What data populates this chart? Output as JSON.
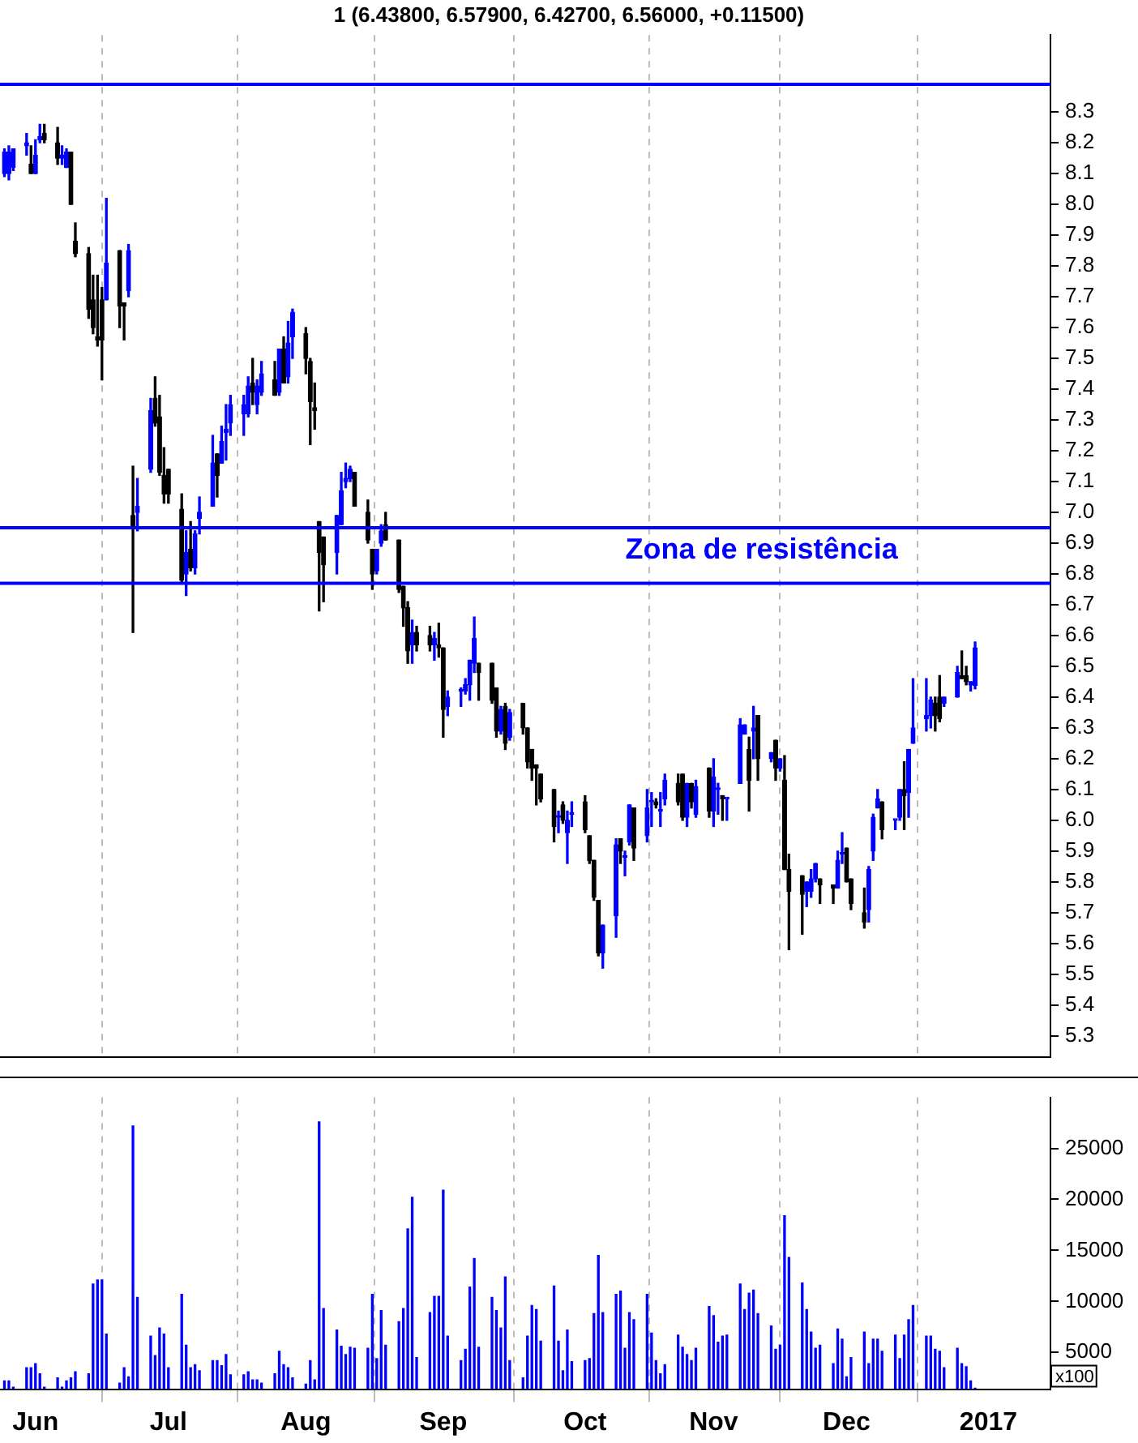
{
  "chart_data": [
    {
      "type": "candlestick",
      "title": "1 (6.43800, 6.57900, 6.42700, 6.56000, +0.11500)",
      "x": [
        "2016-05-25",
        "2016-05-26",
        "2016-05-27",
        "2016-05-30",
        "2016-05-31",
        "2016-06-01",
        "2016-06-02",
        "2016-06-03",
        "2016-06-06",
        "2016-06-07",
        "2016-06-08",
        "2016-06-09",
        "2016-06-10",
        "2016-06-13",
        "2016-06-14",
        "2016-06-15",
        "2016-06-16",
        "2016-06-17",
        "2016-06-20",
        "2016-06-21",
        "2016-06-22",
        "2016-06-23",
        "2016-06-24",
        "2016-06-27",
        "2016-06-28",
        "2016-06-29",
        "2016-06-30",
        "2016-07-01",
        "2016-07-04",
        "2016-07-05",
        "2016-07-06",
        "2016-07-07",
        "2016-07-08",
        "2016-07-11",
        "2016-07-12",
        "2016-07-13",
        "2016-07-14",
        "2016-07-15",
        "2016-07-18",
        "2016-07-19",
        "2016-07-20",
        "2016-07-21",
        "2016-07-22",
        "2016-07-25",
        "2016-07-26",
        "2016-07-27",
        "2016-07-28",
        "2016-07-29",
        "2016-08-01",
        "2016-08-02",
        "2016-08-03",
        "2016-08-04",
        "2016-08-05",
        "2016-08-08",
        "2016-08-09",
        "2016-08-10",
        "2016-08-11",
        "2016-08-12",
        "2016-08-15",
        "2016-08-16",
        "2016-08-17",
        "2016-08-18",
        "2016-08-19",
        "2016-08-22",
        "2016-08-23",
        "2016-08-24",
        "2016-08-25",
        "2016-08-26",
        "2016-08-29",
        "2016-08-30",
        "2016-08-31",
        "2016-09-01",
        "2016-09-02",
        "2016-09-05",
        "2016-09-06",
        "2016-09-07",
        "2016-09-08",
        "2016-09-09",
        "2016-09-12",
        "2016-09-13",
        "2016-09-14",
        "2016-09-15",
        "2016-09-16",
        "2016-09-19",
        "2016-09-20",
        "2016-09-21",
        "2016-09-22",
        "2016-09-23",
        "2016-09-26",
        "2016-09-27",
        "2016-09-28",
        "2016-09-29",
        "2016-09-30",
        "2016-10-03",
        "2016-10-04",
        "2016-10-05",
        "2016-10-06",
        "2016-10-07",
        "2016-10-10",
        "2016-10-11",
        "2016-10-12",
        "2016-10-13",
        "2016-10-14",
        "2016-10-17",
        "2016-10-18",
        "2016-10-19",
        "2016-10-20",
        "2016-10-21",
        "2016-10-24",
        "2016-10-25",
        "2016-10-26",
        "2016-10-27",
        "2016-10-28",
        "2016-10-31",
        "2016-11-01",
        "2016-11-02",
        "2016-11-03",
        "2016-11-04",
        "2016-11-07",
        "2016-11-08",
        "2016-11-09",
        "2016-11-10",
        "2016-11-11",
        "2016-11-14",
        "2016-11-15",
        "2016-11-16",
        "2016-11-17",
        "2016-11-18",
        "2016-11-21",
        "2016-11-22",
        "2016-11-23",
        "2016-11-24",
        "2016-11-25",
        "2016-11-28",
        "2016-11-29",
        "2016-11-30",
        "2016-12-01",
        "2016-12-02",
        "2016-12-05",
        "2016-12-06",
        "2016-12-07",
        "2016-12-08",
        "2016-12-09",
        "2016-12-12",
        "2016-12-13",
        "2016-12-14",
        "2016-12-15",
        "2016-12-16",
        "2016-12-19",
        "2016-12-20",
        "2016-12-21",
        "2016-12-22",
        "2016-12-23",
        "2016-12-26",
        "2016-12-27",
        "2016-12-28",
        "2016-12-29",
        "2016-12-30"
      ],
      "ohlc": [
        [
          8.1,
          8.18,
          8.09,
          8.17
        ],
        [
          8.1,
          8.19,
          8.08,
          8.17
        ],
        [
          8.12,
          8.18,
          8.11,
          8.18
        ],
        [
          8.19,
          8.23,
          8.16,
          8.2
        ],
        [
          8.13,
          8.19,
          8.1,
          8.1
        ],
        [
          8.1,
          8.21,
          8.1,
          8.16
        ],
        [
          8.21,
          8.26,
          8.2,
          8.22
        ],
        [
          8.23,
          8.26,
          8.2,
          8.21
        ],
        [
          8.2,
          8.25,
          8.13,
          8.15
        ],
        [
          8.15,
          8.19,
          8.13,
          8.16
        ],
        [
          8.12,
          8.18,
          8.12,
          8.17
        ],
        [
          8.17,
          8.17,
          8.0,
          8.0
        ],
        [
          7.88,
          7.94,
          7.83,
          7.84
        ],
        [
          7.84,
          7.86,
          7.63,
          7.66
        ],
        [
          7.69,
          7.77,
          7.58,
          7.6
        ],
        [
          7.57,
          7.77,
          7.54,
          7.56
        ],
        [
          7.69,
          7.73,
          7.43,
          7.56
        ],
        [
          7.69,
          8.02,
          7.69,
          7.81
        ],
        [
          7.85,
          7.85,
          7.6,
          7.67
        ],
        [
          7.68,
          7.68,
          7.56,
          7.67
        ],
        [
          7.72,
          7.87,
          7.7,
          7.85
        ],
        [
          6.99,
          7.15,
          6.61,
          6.95
        ],
        [
          7.0,
          7.11,
          6.94,
          7.02
        ],
        [
          7.14,
          7.37,
          7.13,
          7.33
        ],
        [
          7.37,
          7.44,
          7.28,
          7.29
        ],
        [
          7.31,
          7.38,
          7.12,
          7.13
        ],
        [
          7.12,
          7.21,
          7.03,
          7.06
        ],
        [
          7.14,
          7.14,
          7.03,
          7.06
        ],
        [
          7.01,
          7.06,
          6.77,
          6.78
        ],
        [
          6.8,
          6.94,
          6.73,
          6.87
        ],
        [
          6.88,
          6.97,
          6.81,
          6.82
        ],
        [
          6.82,
          6.94,
          6.8,
          6.93
        ],
        [
          6.98,
          7.05,
          6.93,
          7.0
        ],
        [
          7.02,
          7.25,
          7.02,
          7.16
        ],
        [
          7.19,
          7.19,
          7.05,
          7.12
        ],
        [
          7.16,
          7.28,
          7.16,
          7.23
        ],
        [
          7.26,
          7.35,
          7.17,
          7.27
        ],
        [
          7.29,
          7.38,
          7.25,
          7.35
        ],
        [
          7.32,
          7.38,
          7.25,
          7.35
        ],
        [
          7.32,
          7.44,
          7.31,
          7.41
        ],
        [
          7.42,
          7.5,
          7.35,
          7.39
        ],
        [
          7.35,
          7.43,
          7.32,
          7.41
        ],
        [
          7.39,
          7.49,
          7.38,
          7.45
        ],
        [
          7.43,
          7.49,
          7.38,
          7.38
        ],
        [
          7.39,
          7.53,
          7.38,
          7.53
        ],
        [
          7.53,
          7.57,
          7.42,
          7.42
        ],
        [
          7.44,
          7.62,
          7.42,
          7.55
        ],
        [
          7.57,
          7.66,
          7.5,
          7.65
        ],
        [
          7.58,
          7.6,
          7.45,
          7.5
        ],
        [
          7.49,
          7.5,
          7.22,
          7.36
        ],
        [
          7.34,
          7.42,
          7.27,
          7.33
        ],
        [
          6.97,
          6.97,
          6.68,
          6.87
        ],
        [
          6.92,
          6.92,
          6.71,
          6.83
        ],
        [
          6.87,
          6.99,
          6.8,
          6.99
        ],
        [
          6.96,
          7.13,
          6.96,
          7.07
        ],
        [
          7.1,
          7.16,
          7.08,
          7.11
        ],
        [
          7.11,
          7.15,
          7.1,
          7.14
        ],
        [
          7.13,
          7.13,
          7.02,
          7.02
        ],
        [
          7.0,
          7.04,
          6.9,
          6.91
        ],
        [
          6.88,
          6.88,
          6.75,
          6.8
        ],
        [
          6.81,
          6.88,
          6.8,
          6.88
        ],
        [
          6.9,
          6.96,
          6.89,
          6.94
        ],
        [
          6.96,
          7.0,
          6.91,
          6.91
        ],
        [
          6.91,
          6.91,
          6.74,
          6.75
        ],
        [
          6.76,
          6.76,
          6.63,
          6.69
        ],
        [
          6.69,
          6.71,
          6.51,
          6.55
        ],
        [
          6.57,
          6.65,
          6.51,
          6.61
        ],
        [
          6.61,
          6.63,
          6.55,
          6.57
        ],
        [
          6.6,
          6.63,
          6.55,
          6.57
        ],
        [
          6.57,
          6.61,
          6.52,
          6.59
        ],
        [
          6.57,
          6.64,
          6.53,
          6.56
        ],
        [
          6.56,
          6.56,
          6.27,
          6.36
        ],
        [
          6.37,
          6.42,
          6.34,
          6.4
        ],
        [
          6.42,
          6.43,
          6.37,
          6.42
        ],
        [
          6.42,
          6.46,
          6.41,
          6.44
        ],
        [
          6.44,
          6.52,
          6.39,
          6.52
        ],
        [
          6.51,
          6.66,
          6.48,
          6.59
        ],
        [
          6.51,
          6.51,
          6.39,
          6.48
        ],
        [
          6.51,
          6.51,
          6.38,
          6.39
        ],
        [
          6.43,
          6.43,
          6.27,
          6.29
        ],
        [
          6.29,
          6.37,
          6.28,
          6.36
        ],
        [
          6.37,
          6.38,
          6.23,
          6.25
        ],
        [
          6.27,
          6.36,
          6.26,
          6.35
        ],
        [
          6.38,
          6.38,
          6.28,
          6.3
        ],
        [
          6.3,
          6.3,
          6.17,
          6.19
        ],
        [
          6.23,
          6.23,
          6.13,
          6.17
        ],
        [
          6.18,
          6.18,
          6.05,
          6.17
        ],
        [
          6.15,
          6.15,
          6.06,
          6.07
        ],
        [
          6.1,
          6.1,
          5.93,
          5.98
        ],
        [
          6.01,
          6.03,
          5.96,
          6.01
        ],
        [
          6.05,
          6.06,
          5.99,
          6.0
        ],
        [
          5.96,
          6.03,
          5.86,
          6.0
        ],
        [
          6.02,
          6.06,
          5.98,
          6.02
        ],
        [
          6.06,
          6.08,
          5.96,
          5.97
        ],
        [
          5.95,
          5.95,
          5.86,
          5.87
        ],
        [
          5.87,
          5.87,
          5.74,
          5.75
        ],
        [
          5.74,
          5.74,
          5.56,
          5.57
        ],
        [
          5.57,
          5.66,
          5.52,
          5.66
        ],
        [
          5.69,
          5.94,
          5.62,
          5.92
        ],
        [
          5.94,
          5.94,
          5.86,
          5.9
        ],
        [
          5.88,
          5.9,
          5.82,
          5.88
        ],
        [
          5.93,
          6.05,
          5.92,
          6.05
        ],
        [
          6.04,
          6.04,
          5.87,
          5.91
        ],
        [
          5.95,
          6.1,
          5.93,
          6.04
        ],
        [
          6.06,
          6.09,
          5.98,
          6.06
        ],
        [
          6.06,
          6.07,
          6.04,
          6.05
        ],
        [
          6.03,
          6.09,
          5.98,
          6.03
        ],
        [
          6.07,
          6.15,
          6.05,
          6.13
        ],
        [
          6.12,
          6.15,
          6.05,
          6.06
        ],
        [
          6.15,
          6.15,
          6.0,
          6.01
        ],
        [
          6.01,
          6.12,
          5.98,
          6.12
        ],
        [
          6.12,
          6.12,
          6.04,
          6.06
        ],
        [
          6.02,
          6.13,
          6.01,
          6.11
        ],
        [
          6.17,
          6.17,
          6.01,
          6.03
        ],
        [
          6.03,
          6.2,
          5.98,
          6.14
        ],
        [
          6.1,
          6.12,
          6.02,
          6.1
        ],
        [
          6.08,
          6.08,
          6.0,
          6.07
        ],
        [
          6.07,
          6.07,
          6.0,
          6.07
        ],
        [
          6.12,
          6.33,
          6.12,
          6.31
        ],
        [
          6.28,
          6.31,
          6.28,
          6.31
        ],
        [
          6.23,
          6.27,
          6.03,
          6.13
        ],
        [
          6.29,
          6.37,
          6.2,
          6.3
        ],
        [
          6.34,
          6.34,
          6.13,
          6.2
        ],
        [
          6.2,
          6.22,
          6.19,
          6.22
        ],
        [
          6.26,
          6.26,
          6.13,
          6.17
        ],
        [
          6.17,
          6.2,
          6.16,
          6.2
        ],
        [
          6.13,
          6.21,
          5.84,
          5.84
        ],
        [
          5.84,
          5.89,
          5.58,
          5.77
        ],
        [
          5.82,
          5.82,
          5.63,
          5.76
        ],
        [
          5.77,
          5.8,
          5.72,
          5.8
        ],
        [
          5.77,
          5.84,
          5.75,
          5.81
        ],
        [
          5.81,
          5.86,
          5.8,
          5.86
        ],
        [
          5.81,
          5.81,
          5.73,
          5.79
        ],
        [
          5.79,
          5.79,
          5.73,
          5.78
        ],
        [
          5.78,
          5.9,
          5.78,
          5.87
        ],
        [
          5.89,
          5.96,
          5.86,
          5.89
        ],
        [
          5.91,
          5.91,
          5.8,
          5.8
        ],
        [
          5.81,
          5.81,
          5.71,
          5.73
        ],
        [
          5.7,
          5.78,
          5.65,
          5.67
        ],
        [
          5.71,
          5.85,
          5.67,
          5.84
        ],
        [
          5.9,
          6.02,
          5.87,
          6.01
        ],
        [
          6.04,
          6.1,
          6.04,
          6.07
        ],
        [
          6.06,
          6.06,
          5.94,
          5.97
        ],
        [
          6.0,
          6.0,
          5.97,
          6.0
        ],
        [
          6.01,
          6.1,
          6.0,
          6.1
        ],
        [
          6.1,
          6.19,
          5.97,
          6.08
        ],
        [
          6.09,
          6.23,
          6.01,
          6.23
        ],
        [
          6.25,
          6.46,
          6.25,
          6.3
        ],
        [
          6.33,
          6.46,
          6.29,
          6.34
        ],
        [
          6.34,
          6.4,
          6.3,
          6.39
        ],
        [
          6.38,
          6.4,
          6.29,
          6.34
        ],
        [
          6.4,
          6.47,
          6.32,
          6.33
        ],
        [
          6.38,
          6.4,
          6.37,
          6.4
        ],
        [
          6.4,
          6.5,
          6.4,
          6.48
        ],
        [
          6.47,
          6.55,
          6.46,
          6.46
        ],
        [
          6.47,
          6.5,
          6.44,
          6.45
        ],
        [
          6.44,
          6.45,
          6.42,
          6.45
        ],
        [
          6.438,
          6.579,
          6.427,
          6.56
        ]
      ],
      "xlim": [
        "2016-05-24",
        "2017-01-16"
      ],
      "xticks": [
        {
          "value": "2016-06-01",
          "label": null
        },
        {
          "value": "2016-07-01",
          "label": null
        },
        {
          "value": "2016-08-01",
          "label": null
        },
        {
          "value": "2016-09-01",
          "label": null
        },
        {
          "value": "2016-10-03",
          "label": null
        },
        {
          "value": "2016-11-01",
          "label": null
        },
        {
          "value": "2016-12-01",
          "label": null
        },
        {
          "value": "2017-01-02",
          "label": null
        }
      ],
      "ylim": [
        5.23,
        8.55
      ],
      "yticks": [
        5.3,
        5.4,
        5.5,
        5.6,
        5.7,
        5.8,
        5.9,
        {
          "value": 6,
          "label": "6.0"
        },
        6.1,
        6.2,
        6.3,
        6.4,
        6.5,
        6.6,
        6.7,
        6.8,
        6.9,
        {
          "value": 7,
          "label": "7.0"
        },
        7.1,
        7.2,
        7.3,
        7.4,
        7.5,
        7.6,
        7.7,
        7.8,
        7.9,
        {
          "value": 8,
          "label": "8.0"
        },
        8.1,
        8.2,
        8.3
      ],
      "tick_labels": "y",
      "grid": "x",
      "ref_lines": [
        {
          "axis": "y",
          "value": 8.39,
          "color": "#0000ff"
        },
        {
          "axis": "y",
          "value": 6.95,
          "color": "#0000ff",
          "label": "Zona de resistência"
        },
        {
          "axis": "y",
          "value": 6.77,
          "color": "#0000ff"
        }
      ]
    },
    {
      "type": "bar",
      "ylabel": "x100",
      "color": "#0000ff",
      "x": [
        "2016-05-25",
        "2016-05-26",
        "2016-05-27",
        "2016-05-30",
        "2016-05-31",
        "2016-06-01",
        "2016-06-02",
        "2016-06-03",
        "2016-06-06",
        "2016-06-07",
        "2016-06-08",
        "2016-06-09",
        "2016-06-10",
        "2016-06-13",
        "2016-06-14",
        "2016-06-15",
        "2016-06-16",
        "2016-06-17",
        "2016-06-20",
        "2016-06-21",
        "2016-06-22",
        "2016-06-23",
        "2016-06-24",
        "2016-06-27",
        "2016-06-28",
        "2016-06-29",
        "2016-06-30",
        "2016-07-01",
        "2016-07-04",
        "2016-07-05",
        "2016-07-06",
        "2016-07-07",
        "2016-07-08",
        "2016-07-11",
        "2016-07-12",
        "2016-07-13",
        "2016-07-14",
        "2016-07-15",
        "2016-07-18",
        "2016-07-19",
        "2016-07-20",
        "2016-07-21",
        "2016-07-22",
        "2016-07-25",
        "2016-07-26",
        "2016-07-27",
        "2016-07-28",
        "2016-07-29",
        "2016-08-01",
        "2016-08-02",
        "2016-08-03",
        "2016-08-04",
        "2016-08-05",
        "2016-08-08",
        "2016-08-09",
        "2016-08-10",
        "2016-08-11",
        "2016-08-12",
        "2016-08-15",
        "2016-08-16",
        "2016-08-17",
        "2016-08-18",
        "2016-08-19",
        "2016-08-22",
        "2016-08-23",
        "2016-08-24",
        "2016-08-25",
        "2016-08-26",
        "2016-08-29",
        "2016-08-30",
        "2016-08-31",
        "2016-09-01",
        "2016-09-02",
        "2016-09-05",
        "2016-09-06",
        "2016-09-07",
        "2016-09-08",
        "2016-09-09",
        "2016-09-12",
        "2016-09-13",
        "2016-09-14",
        "2016-09-15",
        "2016-09-16",
        "2016-09-19",
        "2016-09-20",
        "2016-09-21",
        "2016-09-22",
        "2016-09-23",
        "2016-09-26",
        "2016-09-27",
        "2016-09-28",
        "2016-09-29",
        "2016-09-30",
        "2016-10-03",
        "2016-10-04",
        "2016-10-05",
        "2016-10-06",
        "2016-10-07",
        "2016-10-10",
        "2016-10-11",
        "2016-10-12",
        "2016-10-13",
        "2016-10-14",
        "2016-10-17",
        "2016-10-18",
        "2016-10-19",
        "2016-10-20",
        "2016-10-21",
        "2016-10-24",
        "2016-10-25",
        "2016-10-26",
        "2016-10-27",
        "2016-10-28",
        "2016-10-31",
        "2016-11-01",
        "2016-11-02",
        "2016-11-03",
        "2016-11-04",
        "2016-11-07",
        "2016-11-08",
        "2016-11-09",
        "2016-11-10",
        "2016-11-11",
        "2016-11-14",
        "2016-11-15",
        "2016-11-16",
        "2016-11-17",
        "2016-11-18",
        "2016-11-21",
        "2016-11-22",
        "2016-11-23",
        "2016-11-24",
        "2016-11-25",
        "2016-11-28",
        "2016-11-29",
        "2016-11-30",
        "2016-12-01",
        "2016-12-02",
        "2016-12-05",
        "2016-12-06",
        "2016-12-07",
        "2016-12-08",
        "2016-12-09",
        "2016-12-12",
        "2016-12-13",
        "2016-12-14",
        "2016-12-15",
        "2016-12-16",
        "2016-12-19",
        "2016-12-20",
        "2016-12-21",
        "2016-12-22",
        "2016-12-23",
        "2016-12-26",
        "2016-12-27",
        "2016-12-28",
        "2016-12-29",
        "2016-12-30"
      ],
      "values": [
        2200,
        2200,
        1600,
        3500,
        3500,
        3900,
        2900,
        1600,
        2500,
        1600,
        2200,
        2500,
        3100,
        2900,
        11700,
        12100,
        12100,
        6800,
        2000,
        3500,
        2600,
        27200,
        10400,
        6600,
        4700,
        7400,
        6800,
        3500,
        10700,
        5700,
        3500,
        3800,
        3200,
        4200,
        4200,
        3700,
        4800,
        2800,
        2800,
        3100,
        2300,
        2300,
        2000,
        2900,
        5100,
        3800,
        3500,
        2500,
        1900,
        4200,
        2300,
        27600,
        9300,
        7200,
        5600,
        4800,
        5500,
        5400,
        5400,
        10700,
        4400,
        9100,
        5700,
        8000,
        9300,
        17100,
        20200,
        4500,
        8900,
        10500,
        10500,
        20900,
        6600,
        4200,
        5300,
        11400,
        14200,
        5500,
        10400,
        9100,
        7400,
        12400,
        4200,
        2500,
        6600,
        9600,
        9200,
        6100,
        11500,
        6100,
        3200,
        7200,
        4100,
        4200,
        4400,
        8800,
        14500,
        8900,
        10700,
        11000,
        5400,
        8900,
        8200,
        10700,
        6900,
        4200,
        2900,
        3800,
        6700,
        5500,
        4800,
        4200,
        5400,
        9500,
        8600,
        6000,
        6600,
        6700,
        11700,
        9200,
        10800,
        11100,
        8800,
        7600,
        5300,
        5700,
        18400,
        14300,
        11800,
        9200,
        7000,
        5400,
        5700,
        3900,
        7300,
        6300,
        2600,
        4500,
        7000,
        3900,
        6300,
        6300,
        5100,
        6700,
        4400,
        6700,
        8200,
        9600,
        6600,
        6600,
        5300,
        5100,
        3500,
        5400,
        3900,
        3600,
        2200,
        1500
      ],
      "xlim": [
        "2016-05-24",
        "2017-01-16"
      ],
      "xticks": [
        {
          "value": "2016-06-01",
          "label": "Jun"
        },
        {
          "value": "2016-07-01",
          "label": "Jul"
        },
        {
          "value": "2016-08-01",
          "label": "Aug"
        },
        {
          "value": "2016-09-01",
          "label": "Sep"
        },
        {
          "value": "2016-10-03",
          "label": "Oct"
        },
        {
          "value": "2016-11-01",
          "label": "Nov"
        },
        {
          "value": "2016-12-01",
          "label": "Dec"
        },
        {
          "value": "2017-01-02",
          "label": "2017"
        }
      ],
      "ylim": [
        1400,
        30000
      ],
      "yticks": [
        5000,
        10000,
        15000,
        20000,
        25000
      ],
      "grid": "x"
    }
  ]
}
